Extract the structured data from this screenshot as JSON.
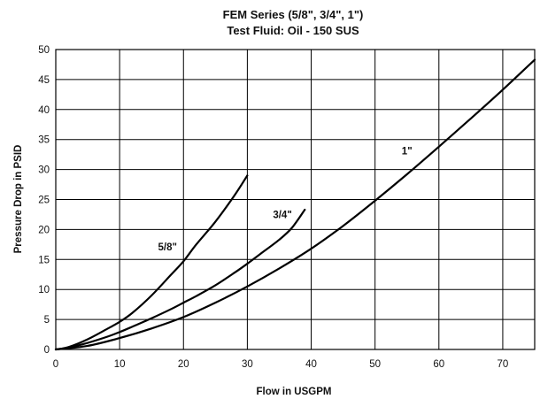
{
  "chart_data": {
    "type": "line",
    "title": "FEM Series (5/8\", 3/4\", 1\")",
    "subtitle": "Test Fluid: Oil - 150 SUS",
    "xlabel": "Flow in USGPM",
    "ylabel": "Pressure Drop in PSID",
    "xlim": [
      0,
      75
    ],
    "ylim": [
      0,
      50
    ],
    "x_ticks": [
      0,
      10,
      20,
      30,
      40,
      50,
      60,
      70
    ],
    "y_ticks": [
      0,
      5,
      10,
      15,
      20,
      25,
      30,
      35,
      40,
      45,
      50
    ],
    "grid": true,
    "series": [
      {
        "name": "5/8\"",
        "x": [
          0,
          2,
          5,
          8,
          10,
          12,
          15,
          18,
          20,
          22,
          25,
          28,
          30
        ],
        "y": [
          0,
          0.4,
          1.7,
          3.4,
          4.6,
          6.1,
          9.0,
          12.4,
          14.7,
          17.5,
          21.3,
          25.7,
          29.0
        ]
      },
      {
        "name": "3/4\"",
        "x": [
          0,
          2,
          5,
          8,
          10,
          12,
          15,
          18,
          20,
          22,
          25,
          28,
          30,
          32,
          35,
          37,
          39
        ],
        "y": [
          0,
          0.3,
          1.1,
          2.1,
          2.9,
          3.8,
          5.2,
          6.7,
          7.8,
          8.9,
          10.7,
          12.8,
          14.3,
          15.9,
          18.3,
          20.3,
          23.3
        ]
      },
      {
        "name": "1\"",
        "x": [
          0,
          5,
          10,
          15,
          20,
          25,
          30,
          35,
          40,
          45,
          50,
          55,
          60,
          65,
          70,
          75
        ],
        "y": [
          0,
          0.6,
          1.9,
          3.5,
          5.4,
          7.8,
          10.5,
          13.5,
          16.8,
          20.6,
          24.8,
          29.2,
          33.8,
          38.5,
          43.3,
          48.3
        ]
      }
    ],
    "series_labels": [
      {
        "text": "5/8\"",
        "x": 17.5,
        "y": 16.5
      },
      {
        "text": "3/4\"",
        "x": 35.5,
        "y": 21.9
      },
      {
        "text": "1\"",
        "x": 55,
        "y": 32.5
      }
    ]
  }
}
